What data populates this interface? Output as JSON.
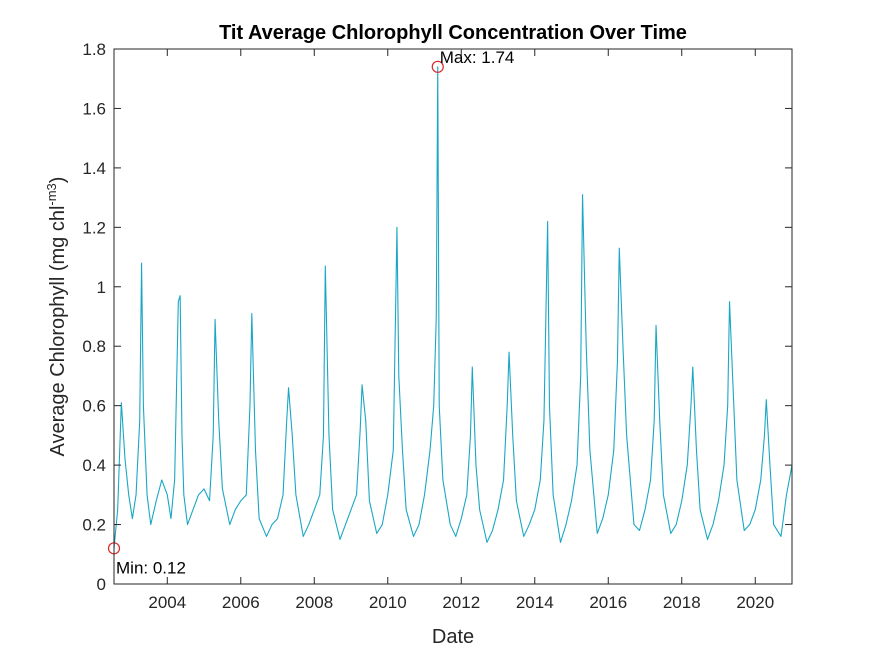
{
  "chart_data": {
    "type": "line",
    "title": "Tit Average Chlorophyll Concentration Over Time",
    "xlabel": "Date",
    "ylabel_main": "Average Chlorophyll (mg chl",
    "ylabel_sup": "-m3",
    "ylabel_close": ")",
    "xlim": [
      2002.55,
      2021.0
    ],
    "ylim": [
      0,
      1.8
    ],
    "x_ticks": [
      2004,
      2006,
      2008,
      2010,
      2012,
      2014,
      2016,
      2018,
      2020
    ],
    "x_tick_labels": [
      "2004",
      "2006",
      "2008",
      "2010",
      "2012",
      "2014",
      "2016",
      "2018",
      "2020"
    ],
    "y_ticks": [
      0,
      0.2,
      0.4,
      0.6,
      0.8,
      1.0,
      1.2,
      1.4,
      1.6,
      1.8
    ],
    "y_tick_labels": [
      "0",
      "0.2",
      "0.4",
      "0.6",
      "0.8",
      "1",
      "1.2",
      "1.4",
      "1.6",
      "1.8"
    ],
    "grid": false,
    "line_color": "#1aa7c4",
    "marker_color": "#d62728",
    "series": [
      {
        "x": [
          2002.55,
          2002.65,
          2002.75,
          2002.85,
          2002.95,
          2003.05,
          2003.15,
          2003.25,
          2003.3,
          2003.35,
          2003.45,
          2003.55,
          2003.7,
          2003.85,
          2004.0,
          2004.1,
          2004.2,
          2004.3,
          2004.35,
          2004.4,
          2004.45,
          2004.55,
          2004.7,
          2004.85,
          2005.0,
          2005.15,
          2005.25,
          2005.3,
          2005.4,
          2005.5,
          2005.7,
          2005.85,
          2006.0,
          2006.15,
          2006.25,
          2006.3,
          2006.4,
          2006.5,
          2006.7,
          2006.85,
          2007.0,
          2007.15,
          2007.25,
          2007.3,
          2007.4,
          2007.5,
          2007.7,
          2007.85,
          2008.0,
          2008.15,
          2008.25,
          2008.3,
          2008.4,
          2008.5,
          2008.7,
          2008.85,
          2009.0,
          2009.15,
          2009.25,
          2009.3,
          2009.4,
          2009.5,
          2009.7,
          2009.85,
          2010.0,
          2010.15,
          2010.25,
          2010.3,
          2010.4,
          2010.5,
          2010.7,
          2010.85,
          2011.0,
          2011.15,
          2011.25,
          2011.32,
          2011.36,
          2011.4,
          2011.5,
          2011.7,
          2011.85,
          2012.0,
          2012.15,
          2012.25,
          2012.3,
          2012.4,
          2012.5,
          2012.7,
          2012.85,
          2013.0,
          2013.15,
          2013.25,
          2013.3,
          2013.4,
          2013.5,
          2013.7,
          2013.85,
          2014.0,
          2014.15,
          2014.25,
          2014.35,
          2014.4,
          2014.5,
          2014.7,
          2014.85,
          2015.0,
          2015.15,
          2015.25,
          2015.3,
          2015.4,
          2015.5,
          2015.7,
          2015.85,
          2016.0,
          2016.15,
          2016.25,
          2016.3,
          2016.4,
          2016.5,
          2016.7,
          2016.85,
          2017.0,
          2017.15,
          2017.25,
          2017.3,
          2017.4,
          2017.5,
          2017.7,
          2017.85,
          2018.0,
          2018.15,
          2018.25,
          2018.3,
          2018.4,
          2018.5,
          2018.7,
          2018.85,
          2019.0,
          2019.15,
          2019.25,
          2019.3,
          2019.4,
          2019.5,
          2019.7,
          2019.85,
          2020.0,
          2020.15,
          2020.25,
          2020.3,
          2020.4,
          2020.5,
          2020.7,
          2020.85,
          2021.0
        ],
        "y": [
          0.12,
          0.25,
          0.61,
          0.42,
          0.3,
          0.22,
          0.3,
          0.55,
          1.08,
          0.6,
          0.3,
          0.2,
          0.28,
          0.35,
          0.3,
          0.22,
          0.35,
          0.95,
          0.97,
          0.5,
          0.3,
          0.2,
          0.25,
          0.3,
          0.32,
          0.28,
          0.5,
          0.89,
          0.55,
          0.32,
          0.2,
          0.25,
          0.28,
          0.3,
          0.6,
          0.91,
          0.45,
          0.22,
          0.16,
          0.2,
          0.22,
          0.3,
          0.55,
          0.66,
          0.5,
          0.3,
          0.16,
          0.2,
          0.25,
          0.3,
          0.5,
          1.07,
          0.5,
          0.25,
          0.15,
          0.2,
          0.25,
          0.3,
          0.52,
          0.67,
          0.55,
          0.28,
          0.17,
          0.2,
          0.3,
          0.45,
          1.2,
          0.7,
          0.45,
          0.25,
          0.16,
          0.2,
          0.3,
          0.45,
          0.6,
          0.9,
          1.74,
          0.6,
          0.35,
          0.2,
          0.16,
          0.22,
          0.3,
          0.5,
          0.73,
          0.4,
          0.25,
          0.14,
          0.18,
          0.25,
          0.35,
          0.6,
          0.78,
          0.5,
          0.28,
          0.16,
          0.2,
          0.25,
          0.35,
          0.55,
          1.22,
          0.6,
          0.3,
          0.14,
          0.2,
          0.28,
          0.4,
          0.7,
          1.31,
          0.8,
          0.45,
          0.17,
          0.22,
          0.3,
          0.45,
          0.75,
          1.13,
          0.8,
          0.5,
          0.2,
          0.18,
          0.25,
          0.35,
          0.55,
          0.87,
          0.55,
          0.3,
          0.17,
          0.2,
          0.28,
          0.4,
          0.6,
          0.73,
          0.45,
          0.25,
          0.15,
          0.2,
          0.28,
          0.4,
          0.6,
          0.95,
          0.65,
          0.35,
          0.18,
          0.2,
          0.25,
          0.35,
          0.5,
          0.62,
          0.4,
          0.2,
          0.16,
          0.3,
          0.4
        ]
      }
    ],
    "annotations": [
      {
        "label": "Max: 1.74",
        "x": 2011.36,
        "y": 1.74
      },
      {
        "label": "Min: 0.12",
        "x": 2002.55,
        "y": 0.12
      }
    ]
  }
}
